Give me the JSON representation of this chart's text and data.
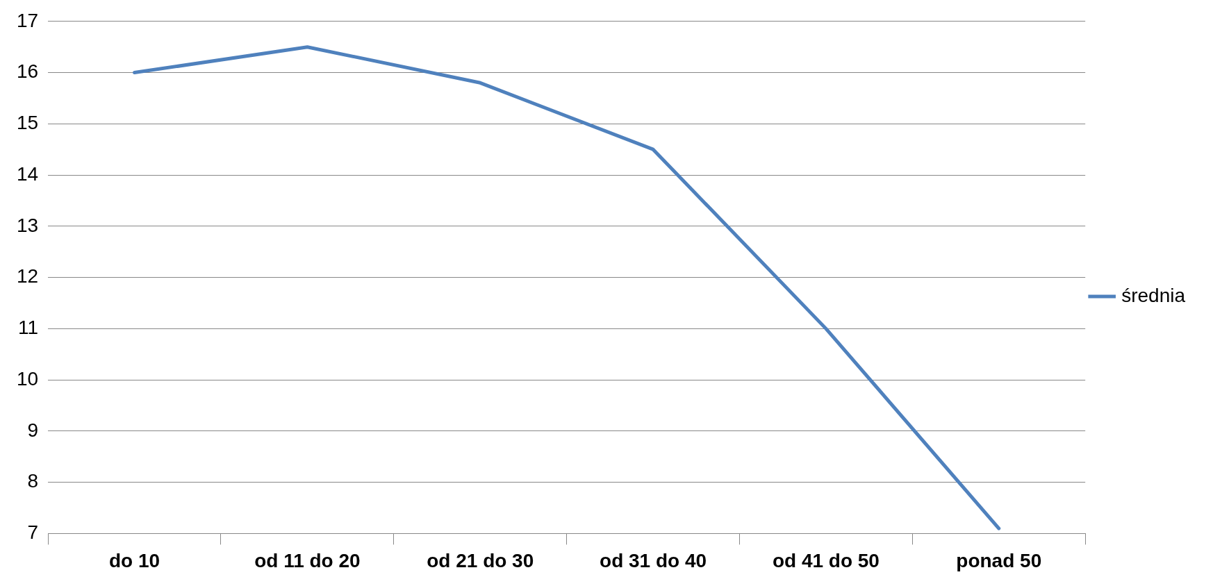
{
  "chart_data": {
    "type": "line",
    "categories": [
      "do 10",
      "od 11 do 20",
      "od 21 do 30",
      "od 31 do 40",
      "od 41 do 50",
      "ponad 50"
    ],
    "series": [
      {
        "name": "średnia",
        "color": "#4f81bd",
        "values": [
          16.0,
          16.5,
          15.8,
          14.5,
          11.0,
          7.1
        ]
      }
    ],
    "ylim": [
      7,
      17
    ],
    "yticks": [
      7,
      8,
      9,
      10,
      11,
      12,
      13,
      14,
      15,
      16,
      17
    ],
    "grid": "y",
    "legend": "right",
    "marker": "none",
    "line_style": "solid"
  }
}
